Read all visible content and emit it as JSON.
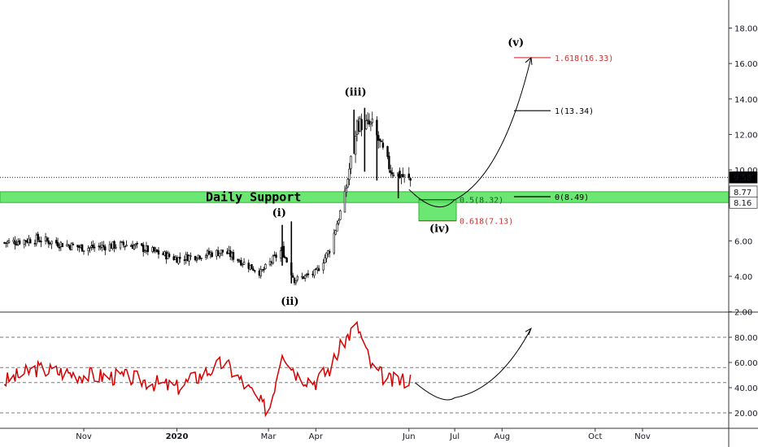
{
  "chart_data": {
    "type": "candlestick",
    "price_axis": {
      "ticks": [
        "18.00",
        "16.00",
        "14.00",
        "12.00",
        "10.00",
        "8.00",
        "6.00",
        "4.00",
        "2.00"
      ],
      "ylim": [
        2,
        19.3
      ],
      "current_price_tag": "9.58",
      "support_top_tag": "8.77",
      "support_bottom_tag": "8.16"
    },
    "time_axis": {
      "labels": [
        "Nov",
        "2020",
        "Mar",
        "Apr",
        "Jun",
        "Jul",
        "Aug",
        "Oct",
        "Nov"
      ],
      "dates": [
        "2019-11-01",
        "2020-01-01",
        "2020-03-01",
        "2020-04-01",
        "2020-06-01",
        "2020-07-01",
        "2020-08-01",
        "2020-10-01",
        "2020-11-01"
      ]
    },
    "price_series_approx": {
      "dates": [
        "2019-09-10",
        "2019-10-01",
        "2019-11-01",
        "2019-12-01",
        "2020-01-01",
        "2020-02-01",
        "2020-02-25",
        "2020-03-10",
        "2020-03-18",
        "2020-04-01",
        "2020-04-10",
        "2020-04-20",
        "2020-04-28",
        "2020-05-08",
        "2020-05-20",
        "2020-06-02"
      ],
      "values": [
        5.9,
        6.1,
        5.6,
        5.8,
        5.0,
        5.4,
        4.2,
        5.5,
        3.8,
        4.2,
        5.5,
        8.5,
        12.6,
        12.5,
        10.0,
        9.4
      ]
    },
    "support_zone": {
      "label": "Daily Support",
      "from": 8.16,
      "to": 8.77
    },
    "price_line": 9.58,
    "wave_labels": [
      "(i)",
      "(ii)",
      "(iii)",
      "(iv)",
      "(v)"
    ],
    "fib_levels": [
      {
        "label": "1.618(16.33)",
        "value": 16.33,
        "color": "#d32f2f"
      },
      {
        "label": "1(13.34)",
        "value": 13.34,
        "color": "#000000"
      },
      {
        "label": "0(8.49)",
        "value": 8.49,
        "color": "#000000"
      },
      {
        "label": "0.5(8.32)",
        "value": 8.32,
        "color": "#1b5e20"
      },
      {
        "label": "0.618(7.13)",
        "value": 7.13,
        "color": "#d32f2f"
      }
    ],
    "projection": {
      "from": 8.3,
      "to": 16.33,
      "end_date": "2020-08-20"
    },
    "rsi": {
      "ticks": [
        "80.00",
        "60.00",
        "40.00",
        "20.00"
      ],
      "ylim": [
        14,
        100
      ],
      "levels": [
        80,
        56,
        44,
        20
      ],
      "dates": [
        "2019-09-10",
        "2019-10-01",
        "2019-11-01",
        "2019-12-01",
        "2020-01-01",
        "2020-02-01",
        "2020-02-20",
        "2020-03-01",
        "2020-03-10",
        "2020-03-20",
        "2020-04-01",
        "2020-04-10",
        "2020-04-20",
        "2020-04-28",
        "2020-05-08",
        "2020-05-20",
        "2020-06-02"
      ],
      "values": [
        45,
        55,
        50,
        48,
        40,
        60,
        35,
        20,
        70,
        50,
        45,
        55,
        78,
        90,
        55,
        45,
        47
      ]
    }
  },
  "colors": {
    "support": "#52e35a",
    "rsi_line": "#d50000",
    "fib_red": "#d32f2f",
    "fib_green": "#1b5e20"
  }
}
